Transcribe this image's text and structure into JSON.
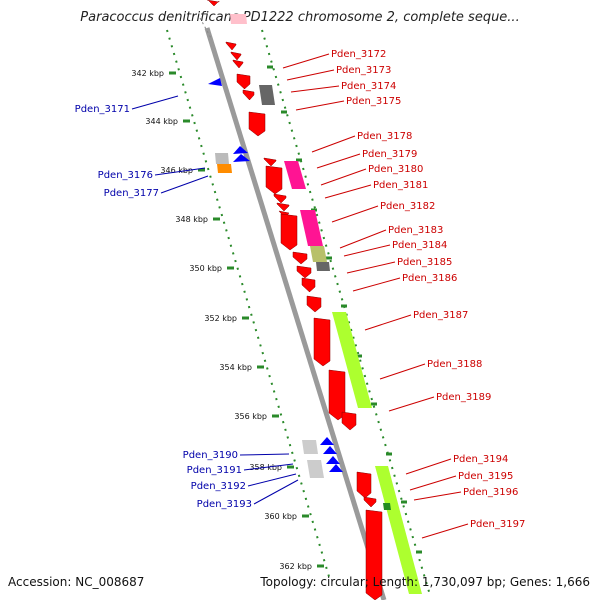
{
  "title": "Paracoccus denitrificans PD1222 chromosome 2, complete seque...",
  "footer": {
    "accession": "Accession: NC_008687",
    "topology": "Topology: circular; Length: 1,730,097 bp; Genes: 1,666"
  },
  "colors": {
    "backbone": "#999999",
    "track_dots": "#2a8a2a",
    "forward_gene": "#ff0000",
    "reverse_gene": "#0000ff",
    "label_forward": "#cc0000",
    "label_reverse": "#0000aa"
  },
  "ticks": [
    "342 kbp",
    "344 kbp",
    "346 kbp",
    "348 kbp",
    "350 kbp",
    "352 kbp",
    "354 kbp",
    "356 kbp",
    "358 kbp",
    "360 kbp",
    "362 kbp"
  ],
  "genes_forward": [
    "Pden_3172",
    "Pden_3173",
    "Pden_3174",
    "Pden_3175",
    "Pden_3178",
    "Pden_3179",
    "Pden_3180",
    "Pden_3181",
    "Pden_3182",
    "Pden_3183",
    "Pden_3184",
    "Pden_3185",
    "Pden_3186",
    "Pden_3187",
    "Pden_3188",
    "Pden_3189",
    "Pden_3194",
    "Pden_3195",
    "Pden_3196",
    "Pden_3197"
  ],
  "genes_reverse": [
    "Pden_3171",
    "Pden_3176",
    "Pden_3177",
    "Pden_3190",
    "Pden_3191",
    "Pden_3192",
    "Pden_3193"
  ]
}
